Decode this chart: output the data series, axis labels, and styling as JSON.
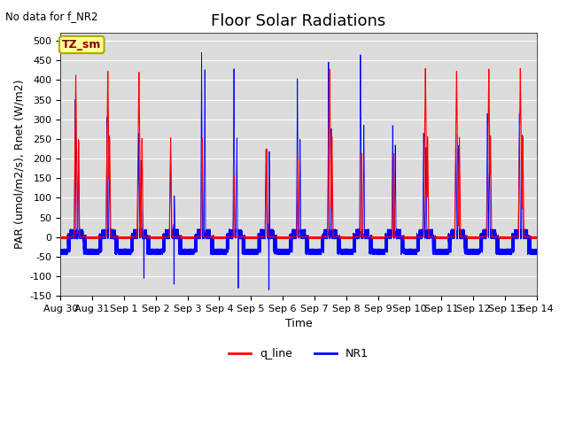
{
  "title": "Floor Solar Radiations",
  "top_left_text": "No data for f_NR2",
  "xlabel": "Time",
  "ylabel": "PAR (umol/m2/s), Rnet (W/m2)",
  "ylim": [
    -150,
    520
  ],
  "yticks": [
    -150,
    -100,
    -50,
    0,
    50,
    100,
    150,
    200,
    250,
    300,
    350,
    400,
    450,
    500
  ],
  "xtick_labels": [
    "Aug 30",
    "Aug 31",
    "Sep 1",
    "Sep 2",
    "Sep 3",
    "Sep 4",
    "Sep 5",
    "Sep 6",
    "Sep 7",
    "Sep 8",
    "Sep 9",
    "Sep 10",
    "Sep 11",
    "Sep 12",
    "Sep 13",
    "Sep 14"
  ],
  "box_label": "TZ_sm",
  "box_color": "#ffff99",
  "box_border_color": "#aaaa00",
  "background_color": "#dcdcdc",
  "q_line_color": "red",
  "NR1_color": "blue",
  "n_days": 15,
  "title_fontsize": 13,
  "label_fontsize": 9,
  "tick_fontsize": 8
}
